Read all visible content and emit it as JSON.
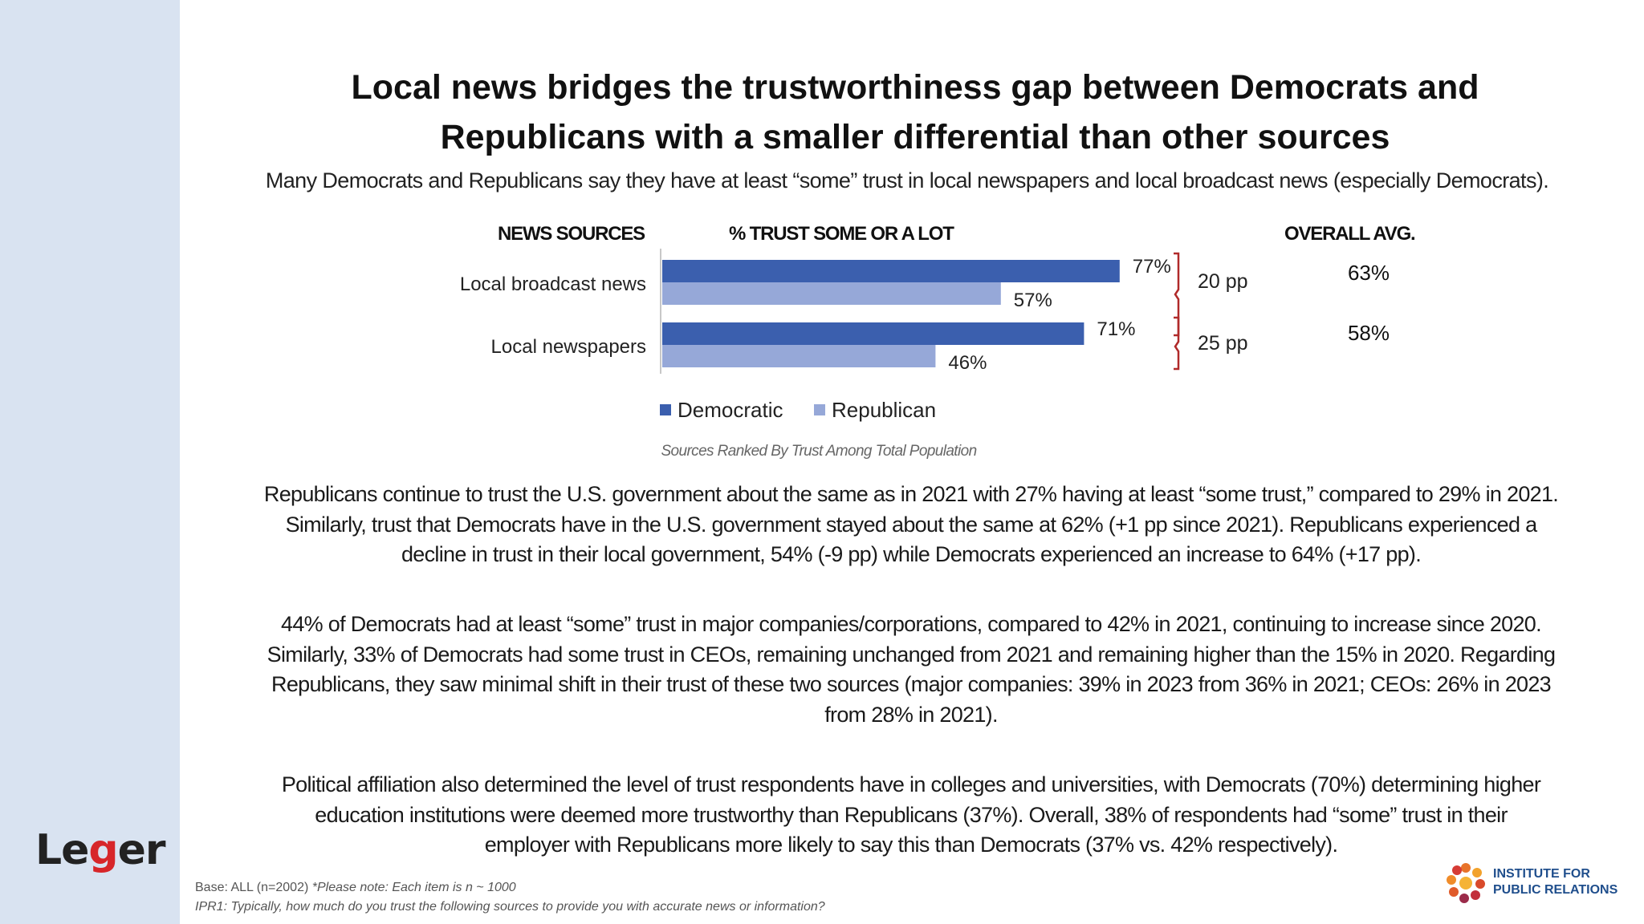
{
  "header": {
    "title_line1": "Local news bridges the trustworthiness gap between Democrats and",
    "title_line2": "Republicans with a smaller differential than other sources",
    "subtitle": "Many Democrats and Republicans say they have at least “some” trust in local newspapers and local broadcast news (especially Democrats)."
  },
  "table_headers": {
    "sources": "NEWS SOURCES",
    "trust": "% TRUST SOME OR A LOT",
    "overall": "OVERALL AVG."
  },
  "chart_data": {
    "type": "bar",
    "orientation": "horizontal",
    "categories": [
      "Local broadcast news",
      "Local newspapers"
    ],
    "series": [
      {
        "name": "Democratic",
        "values": [
          77,
          71
        ],
        "color": "#3b5fae"
      },
      {
        "name": "Republican",
        "values": [
          57,
          46
        ],
        "color": "#96a8d8"
      }
    ],
    "unit": "%",
    "xlim": [
      0,
      100
    ],
    "legend_position": "bottom",
    "gaps": [
      "20 pp",
      "25 pp"
    ],
    "overall_avg": [
      "63%",
      "58%"
    ],
    "note": "Sources Ranked By Trust Among Total Population"
  },
  "paragraphs": [
    {
      "lines": [
        "Republicans continue to trust the U.S. government about the same as in 2021 with 27% having at least “some trust,” compared to 29% in 2021.",
        "Similarly, trust that Democrats have in the U.S. government stayed about the same at 62% (+1 pp since 2021). Republicans experienced a",
        "decline in trust in their local government, 54% (-9 pp) while Democrats experienced an increase to 64% (+17 pp)."
      ]
    },
    {
      "lines": [
        "44% of Democrats had at least “some” trust in major companies/corporations, compared to 42% in 2021, continuing to increase since 2020.",
        "Similarly, 33% of Democrats had some trust in CEOs, remaining unchanged from 2021 and remaining higher than the 15% in 2020. Regarding",
        "Republicans, they saw minimal shift in their trust of these two sources (major companies: 39% in 2023 from 36% in 2021; CEOs: 26% in 2023",
        "from 28% in 2021)."
      ]
    },
    {
      "lines": [
        "Political affiliation also determined the level of trust respondents have in colleges and universities, with Democrats (70%) determining higher",
        "education institutions were deemed more trustworthy than Republicans (37%). Overall, 38% of respondents had “some” trust in their",
        "employer with Republicans more likely to say this than Democrats (37% vs. 42% respectively)."
      ]
    }
  ],
  "footer": {
    "base": "Base: ALL (n=2002)",
    "base_note": "*Please note: Each item is n ~ 1000",
    "question": "IPR1: Typically, how much do you trust the following sources to provide you with accurate news or information?"
  },
  "logos": {
    "leger_prefix": "Le",
    "leger_g": "g",
    "leger_suffix": "er",
    "ipr_line1": "INSTITUTE FOR",
    "ipr_line2": "PUBLIC RELATIONS"
  }
}
